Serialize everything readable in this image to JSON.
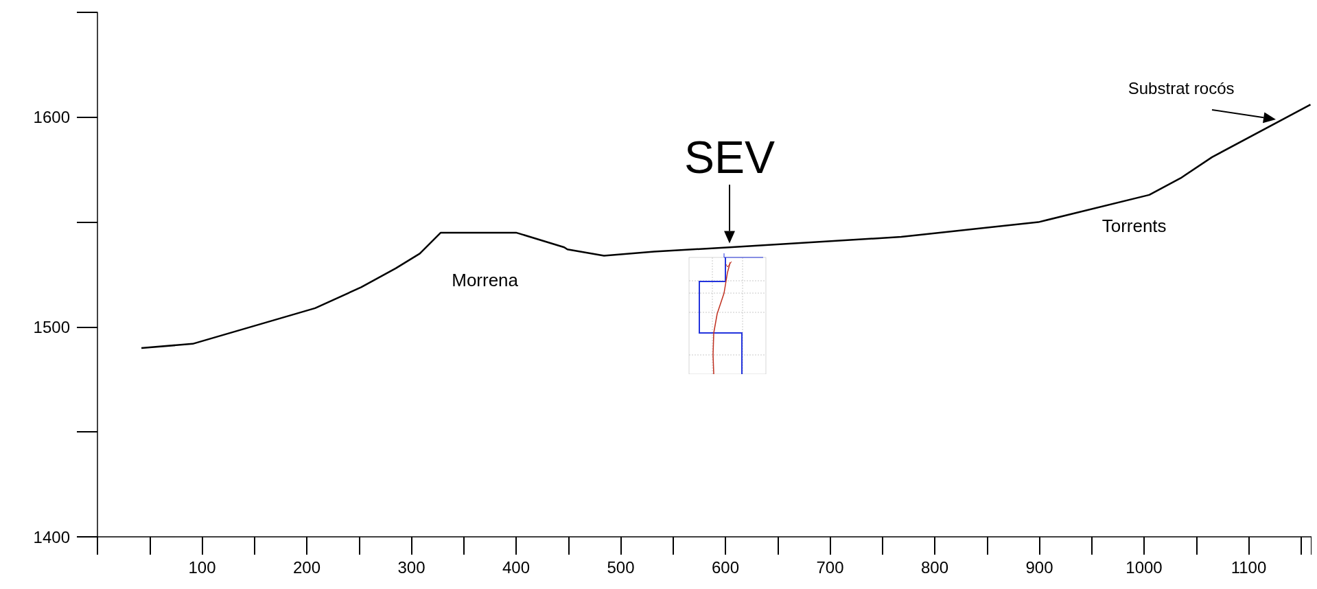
{
  "chart_data": {
    "type": "line",
    "x": [
      42,
      91,
      208,
      252,
      285,
      308,
      328,
      400,
      446,
      449,
      484,
      532,
      604,
      768,
      899,
      1005,
      1035,
      1065,
      1159
    ],
    "values": [
      1490,
      1492,
      1509,
      1519,
      1528,
      1535,
      1545,
      1545,
      1538,
      1537,
      1534,
      1536,
      1538,
      1543,
      1550,
      1563,
      1571,
      1581,
      1606
    ],
    "color": "#000000",
    "xlim": [
      0,
      1160
    ],
    "xticks": [
      100,
      200,
      300,
      400,
      500,
      600,
      700,
      800,
      900,
      1000,
      1100
    ],
    "ylim": [
      1400,
      1650
    ],
    "yticks": [
      1400,
      1500,
      1600
    ],
    "grid": false,
    "annotations": [
      {
        "text": "SEV",
        "x": 604,
        "y": 1540
      },
      {
        "text": "Substrat rocós",
        "x": 1126,
        "y": 1599
      },
      {
        "text": "Morrena",
        "x": 365,
        "y": 1545
      },
      {
        "text": "Torrents",
        "x": 1005,
        "y": 1563
      }
    ]
  }
}
